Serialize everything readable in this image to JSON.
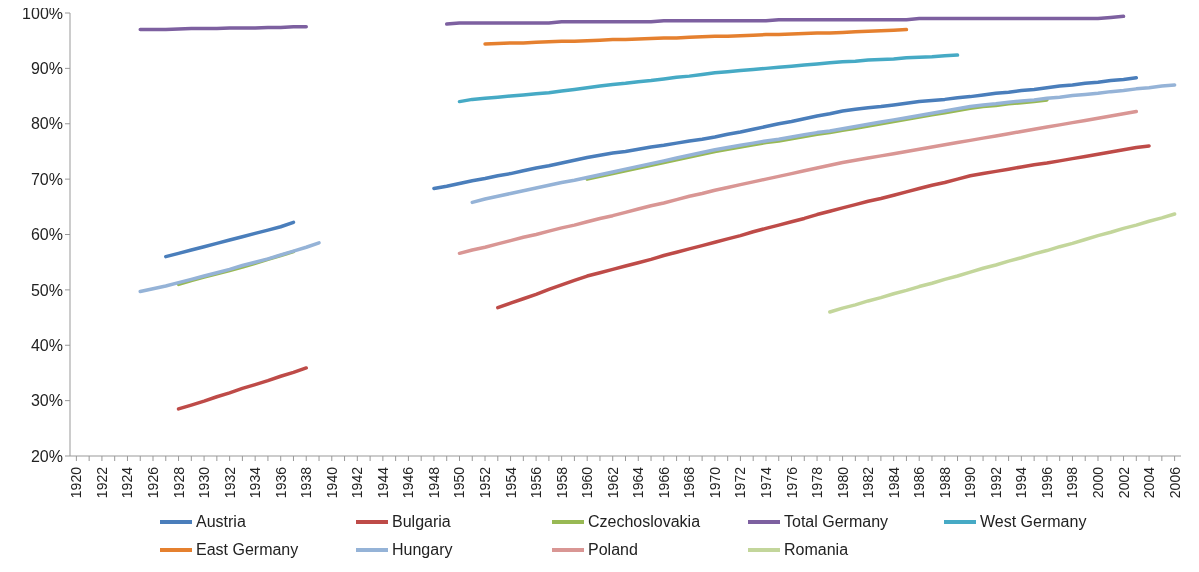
{
  "chart_data": {
    "type": "line",
    "marker": "none",
    "line_style": "solid",
    "grid": false,
    "legend": "bottom",
    "x": [
      1925,
      1926,
      1927,
      1928,
      1929,
      1930,
      1931,
      1932,
      1933,
      1934,
      1935,
      1936,
      1937,
      1938,
      1939,
      1948,
      1949,
      1950,
      1951,
      1952,
      1953,
      1954,
      1955,
      1956,
      1957,
      1958,
      1959,
      1960,
      1961,
      1962,
      1963,
      1964,
      1965,
      1966,
      1967,
      1968,
      1969,
      1970,
      1971,
      1972,
      1973,
      1974,
      1975,
      1976,
      1977,
      1978,
      1979,
      1980,
      1981,
      1982,
      1983,
      1984,
      1985,
      1986,
      1987,
      1988,
      1989,
      1990,
      1991,
      1992,
      1993,
      1994,
      1995,
      1996,
      1997,
      1998,
      1999,
      2000,
      2001,
      2002,
      2003,
      2004,
      2005,
      2006
    ],
    "xlim": [
      1919.5,
      2006.5
    ],
    "xticks": [
      1920,
      {
        "value": 1921,
        "label": null
      },
      1922,
      {
        "value": 1923,
        "label": null
      },
      1924,
      {
        "value": 1925,
        "label": null
      },
      1926,
      {
        "value": 1927,
        "label": null
      },
      1928,
      {
        "value": 1929,
        "label": null
      },
      1930,
      {
        "value": 1931,
        "label": null
      },
      1932,
      {
        "value": 1933,
        "label": null
      },
      1934,
      {
        "value": 1935,
        "label": null
      },
      1936,
      {
        "value": 1937,
        "label": null
      },
      1938,
      {
        "value": 1939,
        "label": null
      },
      1940,
      {
        "value": 1941,
        "label": null
      },
      1942,
      {
        "value": 1943,
        "label": null
      },
      1944,
      {
        "value": 1945,
        "label": null
      },
      1946,
      {
        "value": 1947,
        "label": null
      },
      1948,
      {
        "value": 1949,
        "label": null
      },
      1950,
      {
        "value": 1951,
        "label": null
      },
      1952,
      {
        "value": 1953,
        "label": null
      },
      1954,
      {
        "value": 1955,
        "label": null
      },
      1956,
      {
        "value": 1957,
        "label": null
      },
      1958,
      {
        "value": 1959,
        "label": null
      },
      1960,
      {
        "value": 1961,
        "label": null
      },
      1962,
      {
        "value": 1963,
        "label": null
      },
      1964,
      {
        "value": 1965,
        "label": null
      },
      1966,
      {
        "value": 1967,
        "label": null
      },
      1968,
      {
        "value": 1969,
        "label": null
      },
      1970,
      {
        "value": 1971,
        "label": null
      },
      1972,
      {
        "value": 1973,
        "label": null
      },
      1974,
      {
        "value": 1975,
        "label": null
      },
      1976,
      {
        "value": 1977,
        "label": null
      },
      1978,
      {
        "value": 1979,
        "label": null
      },
      1980,
      {
        "value": 1981,
        "label": null
      },
      1982,
      {
        "value": 1983,
        "label": null
      },
      1984,
      {
        "value": 1985,
        "label": null
      },
      1986,
      {
        "value": 1987,
        "label": null
      },
      1988,
      {
        "value": 1989,
        "label": null
      },
      1990,
      {
        "value": 1991,
        "label": null
      },
      1992,
      {
        "value": 1993,
        "label": null
      },
      1994,
      {
        "value": 1995,
        "label": null
      },
      1996,
      {
        "value": 1997,
        "label": null
      },
      1998,
      {
        "value": 1999,
        "label": null
      },
      2000,
      {
        "value": 2001,
        "label": null
      },
      2002,
      {
        "value": 2003,
        "label": null
      },
      2004,
      {
        "value": 2005,
        "label": null
      },
      2006
    ],
    "ylim": [
      20,
      100
    ],
    "yticks": [
      {
        "value": 20,
        "label": "20%"
      },
      {
        "value": 30,
        "label": "30%"
      },
      {
        "value": 40,
        "label": "40%"
      },
      {
        "value": 50,
        "label": "50%"
      },
      {
        "value": 60,
        "label": "60%"
      },
      {
        "value": 70,
        "label": "70%"
      },
      {
        "value": 80,
        "label": "80%"
      },
      {
        "value": 90,
        "label": "90%"
      },
      {
        "value": 100,
        "label": "100%"
      }
    ],
    "series": [
      {
        "name": "Austria",
        "color": "#4a7ebb",
        "values": [
          null,
          null,
          56.0,
          56.6,
          57.2,
          57.8,
          58.4,
          59.0,
          59.6,
          60.2,
          60.8,
          61.4,
          62.2,
          null,
          null,
          68.3,
          68.7,
          69.2,
          69.7,
          70.1,
          70.6,
          71.0,
          71.5,
          72.0,
          72.4,
          72.9,
          73.4,
          73.9,
          74.3,
          74.7,
          75.0,
          75.4,
          75.8,
          76.1,
          76.5,
          76.9,
          77.2,
          77.6,
          78.1,
          78.5,
          79.0,
          79.5,
          80.0,
          80.4,
          80.9,
          81.4,
          81.8,
          82.3,
          82.6,
          82.9,
          83.1,
          83.4,
          83.7,
          84.0,
          84.2,
          84.4,
          84.7,
          84.9,
          85.2,
          85.5,
          85.7,
          86.0,
          86.2,
          86.5,
          86.8,
          87.0,
          87.3,
          87.5,
          87.8,
          88.0,
          88.3,
          null,
          null,
          null
        ]
      },
      {
        "name": "Bulgaria",
        "color": "#be4b48",
        "values": [
          null,
          null,
          null,
          28.5,
          29.2,
          29.9,
          30.7,
          31.4,
          32.2,
          32.9,
          33.6,
          34.4,
          35.1,
          35.9,
          null,
          null,
          null,
          null,
          null,
          null,
          46.8,
          47.6,
          48.4,
          49.2,
          50.1,
          50.9,
          51.7,
          52.5,
          53.1,
          53.7,
          54.3,
          54.9,
          55.5,
          56.2,
          56.8,
          57.4,
          58.0,
          58.6,
          59.2,
          59.8,
          60.5,
          61.1,
          61.7,
          62.3,
          62.9,
          63.6,
          64.2,
          64.8,
          65.4,
          66.0,
          66.5,
          67.1,
          67.7,
          68.3,
          68.9,
          69.4,
          70.0,
          70.6,
          71.0,
          71.4,
          71.8,
          72.2,
          72.6,
          72.9,
          73.3,
          73.7,
          74.1,
          74.5,
          74.9,
          75.3,
          75.7,
          76.0,
          null,
          null
        ]
      },
      {
        "name": "Czechoslovakia",
        "color": "#98b954",
        "values": [
          null,
          null,
          null,
          51.0,
          51.7,
          52.3,
          52.9,
          53.5,
          54.1,
          54.8,
          55.5,
          56.2,
          56.9,
          null,
          null,
          null,
          null,
          null,
          null,
          null,
          null,
          null,
          null,
          null,
          null,
          null,
          null,
          70.0,
          70.5,
          71.0,
          71.5,
          72.0,
          72.5,
          73.0,
          73.5,
          74.0,
          74.5,
          75.0,
          75.4,
          75.8,
          76.2,
          76.6,
          76.9,
          77.3,
          77.7,
          78.1,
          78.4,
          78.8,
          79.2,
          79.6,
          80.0,
          80.4,
          80.8,
          81.2,
          81.6,
          82.0,
          82.4,
          82.8,
          83.1,
          83.3,
          83.6,
          83.8,
          84.0,
          84.3,
          null,
          null,
          null,
          null,
          null,
          null,
          null,
          null,
          null,
          null
        ]
      },
      {
        "name": "Total Germany",
        "color": "#7d60a0",
        "values": [
          97.0,
          97.0,
          97.0,
          97.1,
          97.2,
          97.2,
          97.2,
          97.3,
          97.3,
          97.3,
          97.4,
          97.4,
          97.5,
          97.5,
          null,
          null,
          98.0,
          98.2,
          98.2,
          98.2,
          98.2,
          98.2,
          98.2,
          98.2,
          98.2,
          98.4,
          98.4,
          98.4,
          98.4,
          98.4,
          98.4,
          98.4,
          98.4,
          98.6,
          98.6,
          98.6,
          98.6,
          98.6,
          98.6,
          98.6,
          98.6,
          98.6,
          98.8,
          98.8,
          98.8,
          98.8,
          98.8,
          98.8,
          98.8,
          98.8,
          98.8,
          98.8,
          98.8,
          99.0,
          99.0,
          99.0,
          99.0,
          99.0,
          99.0,
          99.0,
          99.0,
          99.0,
          99.0,
          99.0,
          99.0,
          99.0,
          99.0,
          99.0,
          99.2,
          99.4,
          null,
          null,
          null,
          null
        ]
      },
      {
        "name": "West Germany",
        "color": "#46aac5",
        "values": [
          null,
          null,
          null,
          null,
          null,
          null,
          null,
          null,
          null,
          null,
          null,
          null,
          null,
          null,
          null,
          null,
          null,
          84.0,
          84.4,
          84.6,
          84.8,
          85.0,
          85.2,
          85.4,
          85.6,
          85.9,
          86.2,
          86.5,
          86.8,
          87.1,
          87.3,
          87.6,
          87.8,
          88.1,
          88.4,
          88.6,
          88.9,
          89.2,
          89.4,
          89.6,
          89.8,
          90.0,
          90.2,
          90.4,
          90.6,
          90.8,
          91.0,
          91.2,
          91.3,
          91.5,
          91.6,
          91.7,
          91.9,
          92.0,
          92.1,
          92.3,
          92.4,
          null,
          null,
          null,
          null,
          null,
          null,
          null,
          null,
          null,
          null,
          null,
          null,
          null,
          null,
          null,
          null,
          null
        ]
      },
      {
        "name": "East Germany",
        "color": "#e5802f",
        "values": [
          null,
          null,
          null,
          null,
          null,
          null,
          null,
          null,
          null,
          null,
          null,
          null,
          null,
          null,
          null,
          null,
          null,
          null,
          null,
          94.4,
          94.5,
          94.6,
          94.6,
          94.7,
          94.8,
          94.9,
          94.9,
          95.0,
          95.1,
          95.2,
          95.2,
          95.3,
          95.4,
          95.5,
          95.5,
          95.6,
          95.7,
          95.8,
          95.8,
          95.9,
          96.0,
          96.1,
          96.1,
          96.2,
          96.3,
          96.4,
          96.4,
          96.5,
          96.6,
          96.7,
          96.8,
          96.9,
          97.0,
          null,
          null,
          null,
          null,
          null,
          null,
          null,
          null,
          null,
          null,
          null,
          null,
          null,
          null,
          null,
          null,
          null,
          null,
          null,
          null,
          null
        ]
      },
      {
        "name": "Hungary",
        "color": "#95b3d7",
        "values": [
          49.7,
          50.2,
          50.7,
          51.3,
          51.9,
          52.5,
          53.1,
          53.7,
          54.4,
          55.0,
          55.6,
          56.3,
          57.0,
          57.7,
          58.5,
          null,
          null,
          null,
          65.8,
          66.4,
          66.9,
          67.4,
          67.9,
          68.4,
          68.9,
          69.4,
          69.8,
          70.3,
          70.8,
          71.3,
          71.8,
          72.3,
          72.8,
          73.3,
          73.8,
          74.3,
          74.8,
          75.3,
          75.7,
          76.1,
          76.5,
          76.9,
          77.2,
          77.6,
          78.0,
          78.4,
          78.7,
          79.1,
          79.5,
          79.9,
          80.3,
          80.7,
          81.1,
          81.5,
          81.9,
          82.3,
          82.7,
          83.1,
          83.4,
          83.6,
          83.9,
          84.1,
          84.3,
          84.6,
          84.8,
          85.1,
          85.3,
          85.5,
          85.8,
          86.0,
          86.3,
          86.5,
          86.8,
          87.0
        ]
      },
      {
        "name": "Poland",
        "color": "#d99694",
        "values": [
          null,
          null,
          null,
          null,
          null,
          null,
          null,
          null,
          null,
          null,
          null,
          null,
          null,
          null,
          null,
          null,
          null,
          56.6,
          57.2,
          57.7,
          58.3,
          58.9,
          59.5,
          60.0,
          60.6,
          61.2,
          61.7,
          62.3,
          62.9,
          63.4,
          64.0,
          64.6,
          65.2,
          65.7,
          66.3,
          66.9,
          67.4,
          68.0,
          68.5,
          69.0,
          69.5,
          70.0,
          70.5,
          71.0,
          71.5,
          72.0,
          72.5,
          73.0,
          73.4,
          73.8,
          74.2,
          74.6,
          75.0,
          75.4,
          75.8,
          76.2,
          76.6,
          77.0,
          77.4,
          77.8,
          78.2,
          78.6,
          79.0,
          79.4,
          79.8,
          80.2,
          80.6,
          81.0,
          81.4,
          81.8,
          82.2,
          null,
          null,
          null
        ]
      },
      {
        "name": "Romania",
        "color": "#c3d69b",
        "values": [
          null,
          null,
          null,
          null,
          null,
          null,
          null,
          null,
          null,
          null,
          null,
          null,
          null,
          null,
          null,
          null,
          null,
          null,
          null,
          null,
          null,
          null,
          null,
          null,
          null,
          null,
          null,
          null,
          null,
          null,
          null,
          null,
          null,
          null,
          null,
          null,
          null,
          null,
          null,
          null,
          null,
          null,
          null,
          null,
          null,
          null,
          46.0,
          46.7,
          47.3,
          48.0,
          48.6,
          49.3,
          49.9,
          50.6,
          51.2,
          51.9,
          52.5,
          53.2,
          53.9,
          54.5,
          55.2,
          55.8,
          56.5,
          57.1,
          57.8,
          58.4,
          59.1,
          59.8,
          60.4,
          61.1,
          61.7,
          62.4,
          63.0,
          63.7
        ]
      }
    ]
  }
}
